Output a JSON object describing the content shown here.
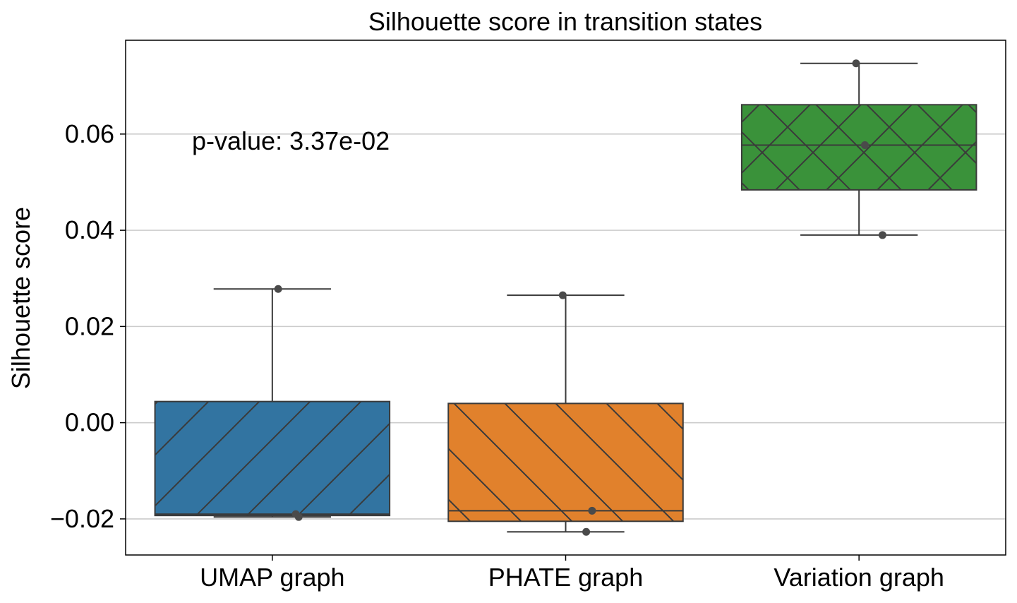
{
  "chart_data": {
    "type": "box",
    "title": "Silhouette score in transition states",
    "xlabel": "",
    "ylabel": "Silhouette score",
    "ylim": [
      -0.0275,
      0.0795
    ],
    "yticks": [
      -0.02,
      0.0,
      0.02,
      0.04,
      0.06
    ],
    "ytick_labels": [
      "−0.02",
      "0.00",
      "0.02",
      "0.04",
      "0.06"
    ],
    "grid": "horizontal",
    "annotation": "p-value: 3.37e-02",
    "categories": [
      "UMAP graph",
      "PHATE graph",
      "Variation graph"
    ],
    "boxes": [
      {
        "category": "UMAP graph",
        "color": "#3274a1",
        "hatch": "forward-diagonal",
        "whisker_low": -0.0196,
        "q1": -0.0193,
        "median": -0.019,
        "q3": 0.0044,
        "whisker_high": 0.0278,
        "points": [
          {
            "value": 0.0278,
            "jitter": 0.02
          },
          {
            "value": -0.019,
            "jitter": 0.08
          },
          {
            "value": -0.0196,
            "jitter": 0.09
          }
        ]
      },
      {
        "category": "PHATE graph",
        "color": "#e1812c",
        "hatch": "back-diagonal",
        "whisker_low": -0.0227,
        "q1": -0.0205,
        "median": -0.0183,
        "q3": 0.004,
        "whisker_high": 0.0265,
        "points": [
          {
            "value": 0.0265,
            "jitter": -0.01
          },
          {
            "value": -0.0183,
            "jitter": 0.09
          },
          {
            "value": -0.0227,
            "jitter": 0.07
          }
        ]
      },
      {
        "category": "Variation graph",
        "color": "#3a923a",
        "hatch": "crosshatch",
        "whisker_low": 0.039,
        "q1": 0.0484,
        "median": 0.0577,
        "q3": 0.0661,
        "whisker_high": 0.0747,
        "points": [
          {
            "value": 0.0747,
            "jitter": -0.01
          },
          {
            "value": 0.0577,
            "jitter": 0.02
          },
          {
            "value": 0.039,
            "jitter": 0.08
          }
        ]
      }
    ]
  }
}
